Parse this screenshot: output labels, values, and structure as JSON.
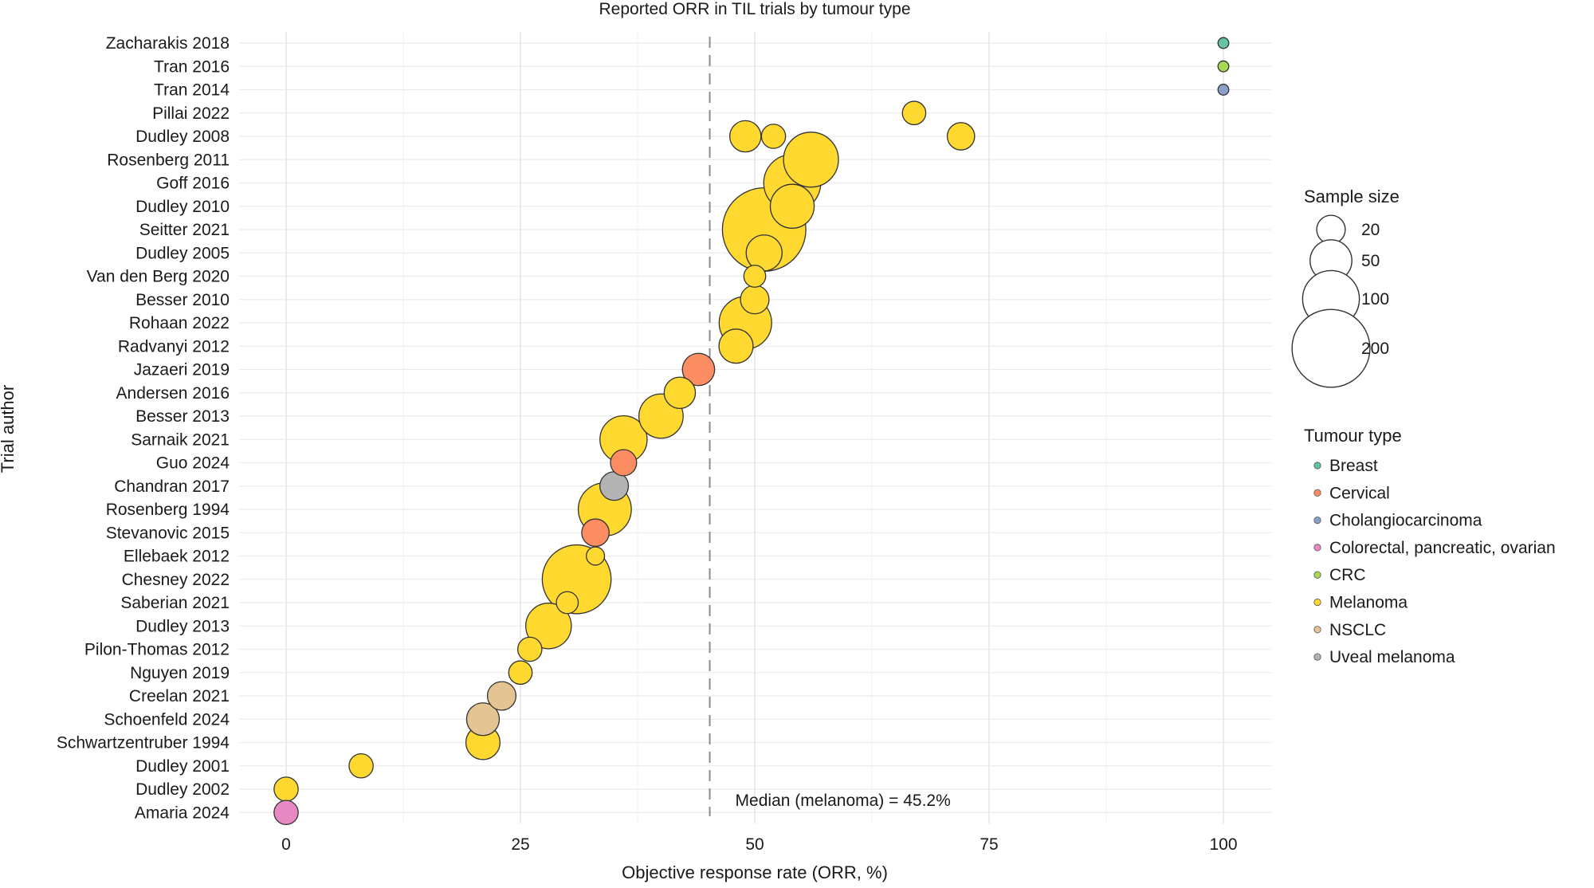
{
  "chart_data": {
    "type": "scatter",
    "title": "Reported ORR in TIL trials by tumour type",
    "xlabel": "Objective response rate (ORR, %)",
    "ylabel": "Trial author",
    "xlim": [
      -8,
      105
    ],
    "x_ticks": [
      0,
      25,
      50,
      75,
      100
    ],
    "x_tick_labels": [
      "0",
      "25",
      "50",
      "75",
      "100"
    ],
    "grid": true,
    "reference_line": {
      "x": 45.2,
      "style": "dashed",
      "label": "Median (melanoma) = 45.2%"
    },
    "trials": [
      "Zacharakis 2018",
      "Tran 2016",
      "Tran 2014",
      "Pillai 2022",
      "Dudley 2008",
      "Rosenberg 2011",
      "Goff 2016",
      "Dudley 2010",
      "Seitter 2021",
      "Dudley 2005",
      "Van den Berg 2020",
      "Besser 2010",
      "Rohaan 2022",
      "Radvanyi 2012",
      "Jazaeri 2019",
      "Andersen 2016",
      "Besser 2013",
      "Sarnaik 2021",
      "Guo 2024",
      "Chandran 2017",
      "Rosenberg 1994",
      "Stevanovic 2015",
      "Ellebaek 2012",
      "Chesney 2022",
      "Saberian 2021",
      "Dudley 2013",
      "Pilon-Thomas 2012",
      "Nguyen 2019",
      "Creelan 2021",
      "Schoenfeld 2024",
      "Schwartzentruber 1994",
      "Dudley 2001",
      "Dudley 2002",
      "Amaria 2024"
    ],
    "points": [
      {
        "trial": "Zacharakis 2018",
        "orr": 100,
        "n": 1,
        "type": "Breast"
      },
      {
        "trial": "Tran 2016",
        "orr": 100,
        "n": 1,
        "type": "CRC"
      },
      {
        "trial": "Tran 2014",
        "orr": 100,
        "n": 1,
        "type": "Cholangiocarcinoma"
      },
      {
        "trial": "Pillai 2022",
        "orr": 67,
        "n": 12,
        "type": "Melanoma"
      },
      {
        "trial": "Dudley 2008",
        "orr": 49,
        "n": 25,
        "type": "Melanoma"
      },
      {
        "trial": "Dudley 2008",
        "orr": 52,
        "n": 13,
        "type": "Melanoma"
      },
      {
        "trial": "Dudley 2008",
        "orr": 72,
        "n": 18,
        "type": "Melanoma"
      },
      {
        "trial": "Rosenberg 2011",
        "orr": 56,
        "n": 93,
        "type": "Melanoma"
      },
      {
        "trial": "Goff 2016",
        "orr": 54,
        "n": 101,
        "type": "Melanoma"
      },
      {
        "trial": "Dudley 2010",
        "orr": 54,
        "n": 56,
        "type": "Melanoma"
      },
      {
        "trial": "Seitter 2021",
        "orr": 51,
        "n": 232,
        "type": "Melanoma"
      },
      {
        "trial": "Dudley 2005",
        "orr": 51,
        "n": 35,
        "type": "Melanoma"
      },
      {
        "trial": "Van den Berg 2020",
        "orr": 50,
        "n": 10,
        "type": "Melanoma"
      },
      {
        "trial": "Besser 2010",
        "orr": 50,
        "n": 20,
        "type": "Melanoma"
      },
      {
        "trial": "Rohaan 2022",
        "orr": 49,
        "n": 84,
        "type": "Melanoma"
      },
      {
        "trial": "Radvanyi 2012",
        "orr": 48,
        "n": 31,
        "type": "Melanoma"
      },
      {
        "trial": "Jazaeri 2019",
        "orr": 44,
        "n": 27,
        "type": "Cervical"
      },
      {
        "trial": "Andersen 2016",
        "orr": 42,
        "n": 25,
        "type": "Melanoma"
      },
      {
        "trial": "Besser 2013",
        "orr": 40,
        "n": 57,
        "type": "Melanoma"
      },
      {
        "trial": "Sarnaik 2021",
        "orr": 36,
        "n": 66,
        "type": "Melanoma"
      },
      {
        "trial": "Guo 2024",
        "orr": 36,
        "n": 16,
        "type": "Cervical"
      },
      {
        "trial": "Chandran 2017",
        "orr": 35,
        "n": 20,
        "type": "Uveal melanoma"
      },
      {
        "trial": "Rosenberg 1994",
        "orr": 34,
        "n": 86,
        "type": "Melanoma"
      },
      {
        "trial": "Stevanovic 2015",
        "orr": 33,
        "n": 18,
        "type": "Cervical"
      },
      {
        "trial": "Ellebaek 2012",
        "orr": 33,
        "n": 6,
        "type": "Melanoma"
      },
      {
        "trial": "Chesney 2022",
        "orr": 31,
        "n": 153,
        "type": "Melanoma"
      },
      {
        "trial": "Saberian 2021",
        "orr": 30,
        "n": 10,
        "type": "Melanoma"
      },
      {
        "trial": "Dudley 2013",
        "orr": 28,
        "n": 61,
        "type": "Melanoma"
      },
      {
        "trial": "Pilon-Thomas 2012",
        "orr": 26,
        "n": 13,
        "type": "Melanoma"
      },
      {
        "trial": "Nguyen 2019",
        "orr": 25,
        "n": 12,
        "type": "Melanoma"
      },
      {
        "trial": "Creelan 2021",
        "orr": 23,
        "n": 20,
        "type": "NSCLC"
      },
      {
        "trial": "Schoenfeld 2024",
        "orr": 21,
        "n": 28,
        "type": "NSCLC"
      },
      {
        "trial": "Schwartzentruber 1994",
        "orr": 21,
        "n": 31,
        "type": "Melanoma"
      },
      {
        "trial": "Dudley 2001",
        "orr": 8,
        "n": 13,
        "type": "Melanoma"
      },
      {
        "trial": "Dudley 2002",
        "orr": 0,
        "n": 13,
        "type": "Melanoma"
      },
      {
        "trial": "Amaria 2024",
        "orr": 0,
        "n": 13,
        "type": "Colorectal, pancreatic, ovarian"
      }
    ],
    "size_legend": {
      "title": "Sample size",
      "levels": [
        20,
        50,
        100,
        200
      ],
      "labels": [
        "20",
        "50",
        "100",
        "200"
      ]
    },
    "color_legend": {
      "title": "Tumour type",
      "placement": "right",
      "items": [
        {
          "name": "Breast",
          "color": "#66c2a5"
        },
        {
          "name": "Cervical",
          "color": "#fc8d62"
        },
        {
          "name": "Cholangiocarcinoma",
          "color": "#8da0cb"
        },
        {
          "name": "Colorectal, pancreatic, ovarian",
          "color": "#e78ac3"
        },
        {
          "name": "CRC",
          "color": "#a6d854"
        },
        {
          "name": "Melanoma",
          "color": "#ffd92f"
        },
        {
          "name": "NSCLC",
          "color": "#e5c494"
        },
        {
          "name": "Uveal melanoma",
          "color": "#b3b3b3"
        }
      ]
    }
  }
}
